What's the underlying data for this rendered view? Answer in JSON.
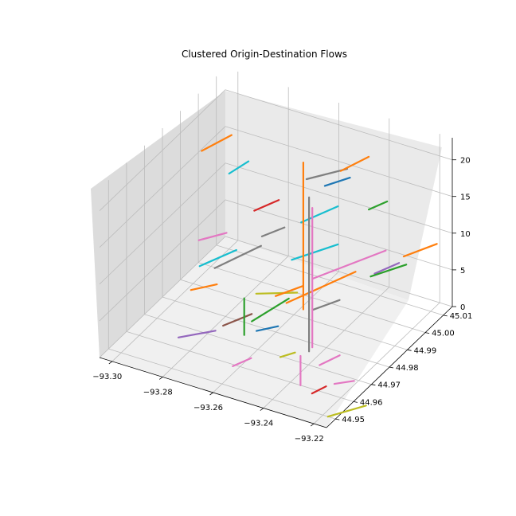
{
  "chart_data": {
    "type": "line3d",
    "title": "Clustered Origin-Destination Flows",
    "x_ticks": [
      "−93.30",
      "−93.28",
      "−93.26",
      "−93.24",
      "−93.22"
    ],
    "x_tick_values": [
      -93.3,
      -93.28,
      -93.26,
      -93.24,
      -93.22
    ],
    "y_ticks": [
      "44.95",
      "44.96",
      "44.97",
      "44.98",
      "44.99",
      "45.00",
      "45.01"
    ],
    "y_tick_values": [
      44.95,
      44.96,
      44.97,
      44.98,
      44.99,
      45.0,
      45.01
    ],
    "z_ticks": [
      "0",
      "5",
      "10",
      "15",
      "20"
    ],
    "z_tick_values": [
      0,
      5,
      10,
      15,
      20
    ],
    "xlim": [
      -93.305,
      -93.215
    ],
    "ylim": [
      44.945,
      45.015
    ],
    "zlim": [
      0,
      23
    ],
    "grid": true,
    "series_colors": [
      "#1f77b4",
      "#ff7f0e",
      "#2ca02c",
      "#d62728",
      "#9467bd",
      "#8c564b",
      "#e377c2",
      "#7f7f7f",
      "#bcbd22",
      "#17becf"
    ],
    "flows": [
      {
        "x0": -93.293,
        "y0": 44.985,
        "x1": -93.289,
        "y1": 44.996,
        "z": 20,
        "c": 1
      },
      {
        "x0": -93.28,
        "y0": 44.974,
        "x1": -93.273,
        "y1": 44.99,
        "z": 8,
        "c": 7
      },
      {
        "x0": -93.255,
        "y0": 44.99,
        "x1": -93.246,
        "y1": 45.0,
        "z": 19,
        "c": 7
      },
      {
        "x0": -93.25,
        "y0": 44.98,
        "x1": -93.244,
        "y1": 44.992,
        "z": 16,
        "c": 9
      },
      {
        "x0": -93.262,
        "y0": 44.975,
        "x1": -93.258,
        "y1": 44.982,
        "z": 14,
        "c": 7
      },
      {
        "x0": -93.248,
        "y0": 44.972,
        "x1": -93.239,
        "y1": 44.985,
        "z": 13,
        "c": 9
      },
      {
        "x0": -93.243,
        "y0": 44.962,
        "x1": -93.232,
        "y1": 44.985,
        "z": 10,
        "c": 1
      },
      {
        "x0": -93.238,
        "y0": 44.97,
        "x1": -93.225,
        "y1": 44.992,
        "z": 12,
        "c": 6
      },
      {
        "x0": -93.255,
        "y0": 44.962,
        "x1": -93.243,
        "y1": 44.968,
        "z": 10,
        "c": 8
      },
      {
        "x0": -93.253,
        "y0": 44.97,
        "x1": -93.248,
        "y1": 44.978,
        "z": 8,
        "c": 1
      },
      {
        "x0": -93.228,
        "y0": 44.99,
        "x1": -93.224,
        "y1": 44.998,
        "z": 9,
        "c": 4
      },
      {
        "x0": -93.22,
        "y0": 44.995,
        "x1": -93.214,
        "y1": 45.005,
        "z": 11,
        "c": 1
      },
      {
        "x0": -93.226,
        "y0": 44.985,
        "x1": -93.219,
        "y1": 44.995,
        "z": 10,
        "c": 2
      },
      {
        "x0": -93.282,
        "y0": 44.968,
        "x1": -93.276,
        "y1": 44.975,
        "z": 13,
        "c": 6
      },
      {
        "x0": -93.276,
        "y0": 44.96,
        "x1": -93.27,
        "y1": 44.972,
        "z": 12,
        "c": 9
      },
      {
        "x0": -93.278,
        "y0": 44.958,
        "x1": -93.272,
        "y1": 44.964,
        "z": 9,
        "c": 1
      },
      {
        "x0": -93.271,
        "y0": 44.966,
        "x1": -93.266,
        "y1": 44.975,
        "z": 3,
        "c": 5
      },
      {
        "x0": -93.249,
        "y0": 44.985,
        "x1": -93.244,
        "y1": 44.993,
        "z": 3,
        "c": 7
      },
      {
        "x0": -93.26,
        "y0": 44.956,
        "x1": -93.257,
        "y1": 44.962,
        "z": 1,
        "c": 6
      },
      {
        "x0": -93.283,
        "y0": 44.958,
        "x1": -93.274,
        "y1": 44.966,
        "z": 2,
        "c": 4
      },
      {
        "x0": -93.266,
        "y0": 44.975,
        "x1": -93.262,
        "y1": 44.99,
        "z": 2,
        "c": 2
      },
      {
        "x0": -93.232,
        "y0": 44.965,
        "x1": -93.229,
        "y1": 44.972,
        "z": 2,
        "c": 6
      },
      {
        "x0": -93.23,
        "y0": 44.958,
        "x1": -93.228,
        "y1": 44.963,
        "z": 0,
        "c": 3
      },
      {
        "x0": -93.218,
        "y0": 44.95,
        "x1": -93.21,
        "y1": 44.96,
        "z": 0,
        "c": 8
      },
      {
        "x0": -93.245,
        "y0": 44.995,
        "x1": -93.241,
        "y1": 45.005,
        "z": 20,
        "c": 1
      },
      {
        "x0": -93.236,
        "y0": 44.998,
        "x1": -93.233,
        "y1": 45.004,
        "z": 15,
        "c": 2
      },
      {
        "x0": -93.252,
        "y0": 44.996,
        "x1": -93.247,
        "y1": 45.003,
        "z": 17,
        "c": 0
      },
      {
        "x0": -93.27,
        "y0": 44.982,
        "x1": -93.266,
        "y1": 44.99,
        "z": 15,
        "c": 3
      },
      {
        "x0": -93.257,
        "y0": 44.965,
        "x1": -93.252,
        "y1": 44.97,
        "z": 4,
        "c": 0
      },
      {
        "x0": -93.244,
        "y0": 44.96,
        "x1": -93.241,
        "y1": 44.964,
        "z": 3,
        "c": 8
      },
      {
        "x0": -93.224,
        "y0": 44.962,
        "x1": -93.219,
        "y1": 44.966,
        "z": 1,
        "c": 6
      },
      {
        "x0": -93.28,
        "y0": 44.982,
        "x1": -93.278,
        "y1": 44.99,
        "z": 19,
        "c": 9
      }
    ],
    "verticals": [
      {
        "x": -93.252,
        "y": 44.984,
        "z0": 3,
        "z1": 23,
        "c": 1
      },
      {
        "x": -93.244,
        "y": 44.976,
        "z0": 0,
        "z1": 21,
        "c": 7
      },
      {
        "x": -93.242,
        "y": 44.975,
        "z0": 1,
        "z1": 20,
        "c": 6
      },
      {
        "x": -93.264,
        "y": 44.968,
        "z0": 2,
        "z1": 7,
        "c": 2
      },
      {
        "x": -93.236,
        "y": 44.96,
        "z0": 0,
        "z1": 4,
        "c": 6
      }
    ]
  }
}
